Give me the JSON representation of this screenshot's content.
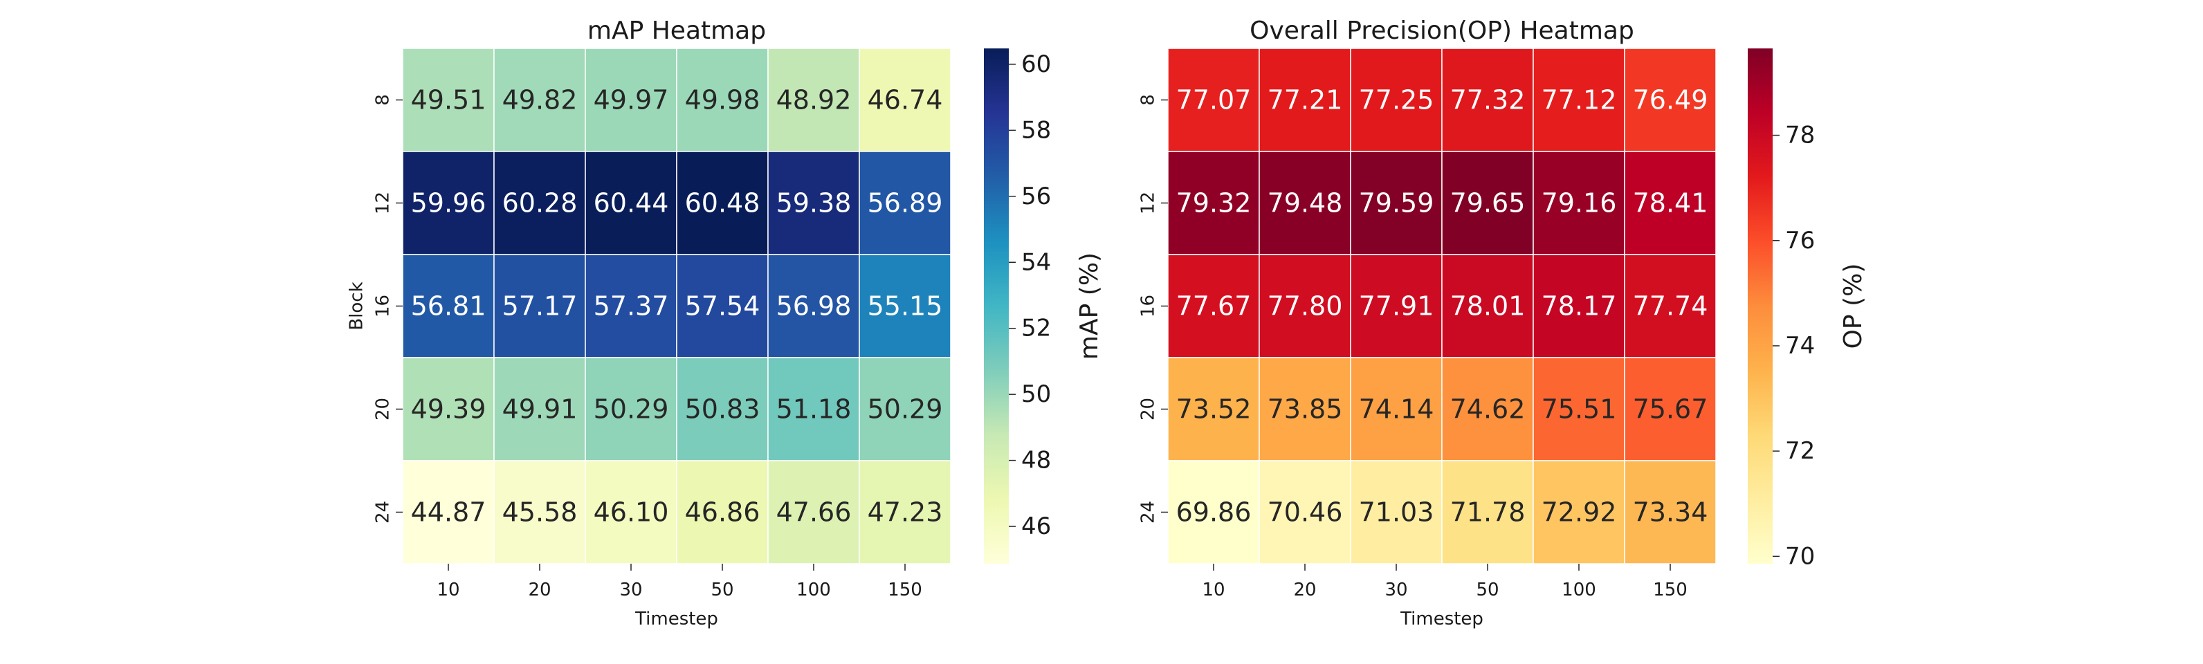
{
  "chart_data": [
    {
      "type": "heatmap",
      "title": "mAP Heatmap",
      "xlabel": "Timestep",
      "ylabel": "Block",
      "x_categories": [
        "10",
        "20",
        "30",
        "50",
        "100",
        "150"
      ],
      "y_categories": [
        "8",
        "12",
        "16",
        "20",
        "24"
      ],
      "values": [
        [
          49.51,
          49.82,
          49.97,
          49.98,
          48.92,
          46.74
        ],
        [
          59.96,
          60.28,
          60.44,
          60.48,
          59.38,
          56.89
        ],
        [
          56.81,
          57.17,
          57.37,
          57.54,
          56.98,
          55.15
        ],
        [
          49.39,
          49.91,
          50.29,
          50.83,
          51.18,
          50.29
        ],
        [
          44.87,
          45.58,
          46.1,
          46.86,
          47.66,
          47.23
        ]
      ],
      "value_format": "2 decimals",
      "colormap": "YlGnBu",
      "colorbar": {
        "label": "mAP (%)",
        "range": [
          44.87,
          60.48
        ],
        "ticks": [
          46,
          48,
          50,
          52,
          54,
          56,
          58,
          60
        ]
      }
    },
    {
      "type": "heatmap",
      "title": "Overall Precision(OP) Heatmap",
      "xlabel": "Timestep",
      "ylabel": "",
      "x_categories": [
        "10",
        "20",
        "30",
        "50",
        "100",
        "150"
      ],
      "y_categories": [
        "8",
        "12",
        "16",
        "20",
        "24"
      ],
      "values": [
        [
          77.07,
          77.21,
          77.25,
          77.32,
          77.12,
          76.49
        ],
        [
          79.32,
          79.48,
          79.59,
          79.65,
          79.16,
          78.41
        ],
        [
          77.67,
          77.8,
          77.91,
          78.01,
          78.17,
          77.74
        ],
        [
          73.52,
          73.85,
          74.14,
          74.62,
          75.51,
          75.67
        ],
        [
          69.86,
          70.46,
          71.03,
          71.78,
          72.92,
          73.34
        ]
      ],
      "value_format": "2 decimals",
      "colormap": "YlOrRd",
      "colorbar": {
        "label": "OP (%)",
        "range": [
          69.86,
          79.65
        ],
        "ticks": [
          70,
          72,
          74,
          76,
          78
        ]
      }
    }
  ],
  "colors": {
    "YlGnBu": [
      "#ffffd9",
      "#edf8b1",
      "#c7e9b4",
      "#7fcdbb",
      "#41b6c4",
      "#1d91c0",
      "#225ea8",
      "#253494",
      "#081d58"
    ],
    "YlOrRd": [
      "#ffffcc",
      "#ffeda0",
      "#fed976",
      "#feb24c",
      "#fd8d3c",
      "#fc4e2a",
      "#e31a1c",
      "#bd0026",
      "#800026"
    ],
    "text_dark": "#262626",
    "text_light": "#ffffff",
    "gridline": "#ffffff"
  }
}
